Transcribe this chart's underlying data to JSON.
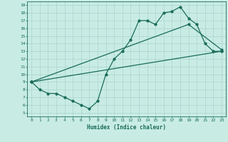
{
  "xlabel": "Humidex (Indice chaleur)",
  "ylabel": "",
  "bg_color": "#c8ece4",
  "line_color": "#1a6b5a",
  "grid_color": "#b0d8d0",
  "xlim": [
    -0.5,
    23.5
  ],
  "ylim": [
    4.5,
    19.5
  ],
  "xticks": [
    0,
    1,
    2,
    3,
    4,
    5,
    6,
    7,
    8,
    9,
    10,
    11,
    12,
    13,
    14,
    15,
    16,
    17,
    18,
    19,
    20,
    21,
    22,
    23
  ],
  "yticks": [
    5,
    6,
    7,
    8,
    9,
    10,
    11,
    12,
    13,
    14,
    15,
    16,
    17,
    18,
    19
  ],
  "line1_x": [
    0,
    1,
    2,
    3,
    4,
    5,
    6,
    7,
    8,
    9,
    10,
    11,
    12,
    13,
    14,
    15,
    16,
    17,
    18,
    19,
    20,
    21,
    22,
    23
  ],
  "line1_y": [
    9,
    8,
    7.5,
    7.5,
    7,
    6.5,
    6,
    5.5,
    6.5,
    10,
    12,
    13,
    14.5,
    17,
    17,
    16.5,
    18,
    18.2,
    18.8,
    17.3,
    16.5,
    14,
    13,
    13
  ],
  "line2_x": [
    0,
    23
  ],
  "line2_y": [
    9,
    13
  ],
  "line3_x": [
    0,
    19,
    23
  ],
  "line3_y": [
    9,
    16.5,
    13.2
  ]
}
